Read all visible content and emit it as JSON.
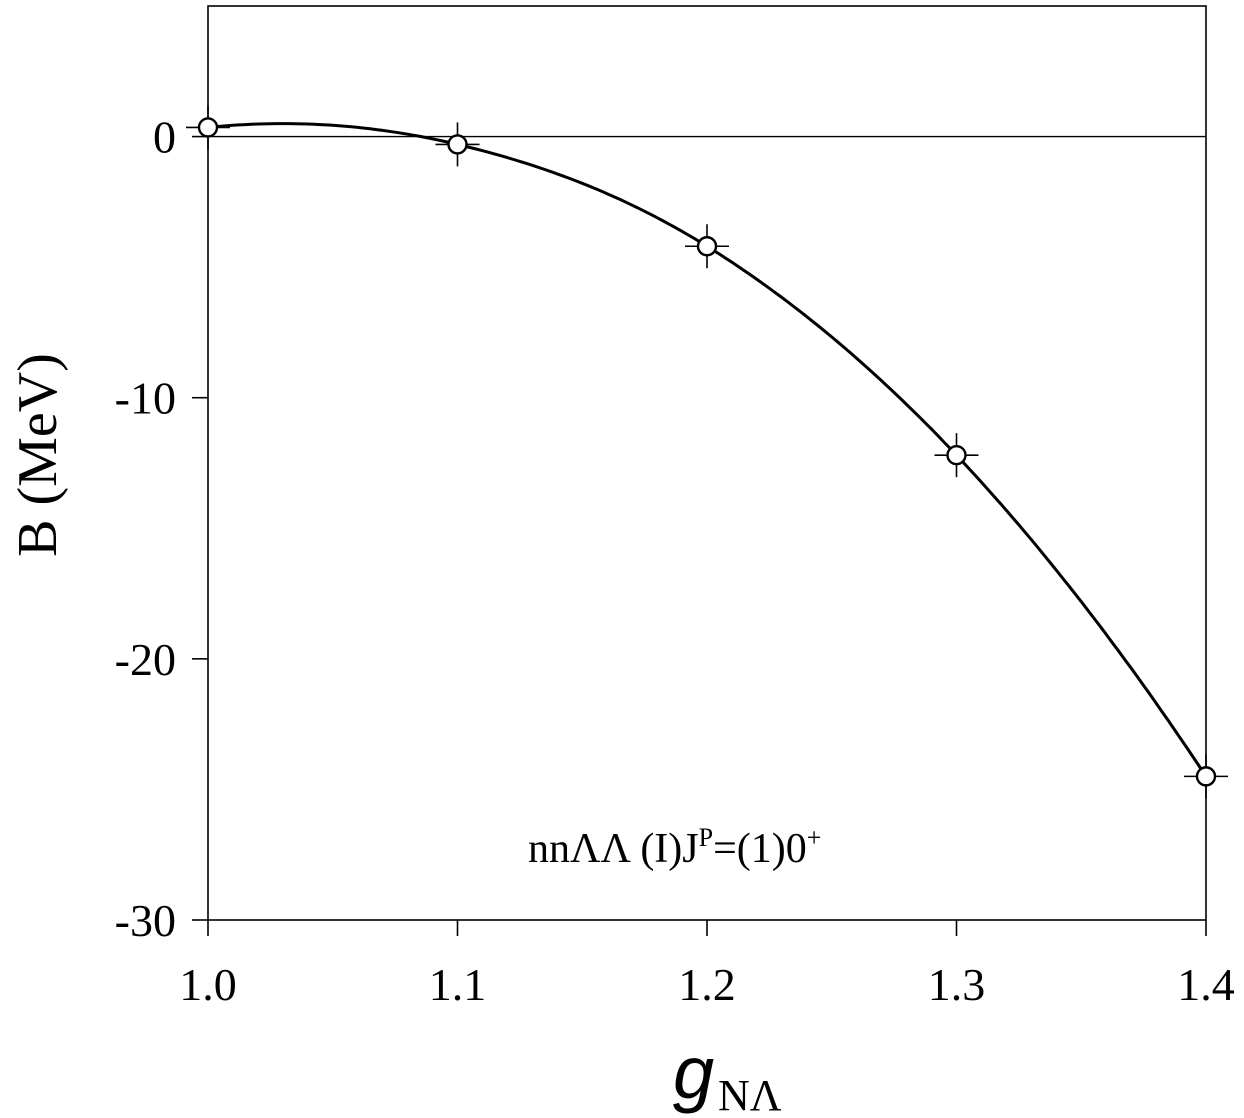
{
  "chart_data": {
    "type": "line",
    "title": "",
    "xlabel_main": "g",
    "xlabel_sub": "NΛ",
    "ylabel": "B (MeV)",
    "xlim": [
      1.0,
      1.4
    ],
    "ylim": [
      -30,
      5
    ],
    "xticks": [
      1.0,
      1.1,
      1.2,
      1.3,
      1.4
    ],
    "xtick_labels": [
      "1.0",
      "1.1",
      "1.2",
      "1.3",
      "1.4"
    ],
    "yticks": [
      0,
      -10,
      -20,
      -30
    ],
    "ytick_labels": [
      "0",
      "-10",
      "-20",
      "-30"
    ],
    "reference_line_y": 0,
    "grid": false,
    "annotation": {
      "text_main": "nnΛΛ (I)J",
      "text_sup1": "P",
      "text_mid": "=(1)0",
      "text_sup2": "+"
    },
    "series": [
      {
        "x": [
          1.0,
          1.1,
          1.2,
          1.3,
          1.4
        ],
        "values": [
          0.35,
          -0.3,
          -4.2,
          -12.2,
          -24.5
        ],
        "marker": "open-circle-with-crosshair",
        "color": "#000000"
      }
    ]
  }
}
